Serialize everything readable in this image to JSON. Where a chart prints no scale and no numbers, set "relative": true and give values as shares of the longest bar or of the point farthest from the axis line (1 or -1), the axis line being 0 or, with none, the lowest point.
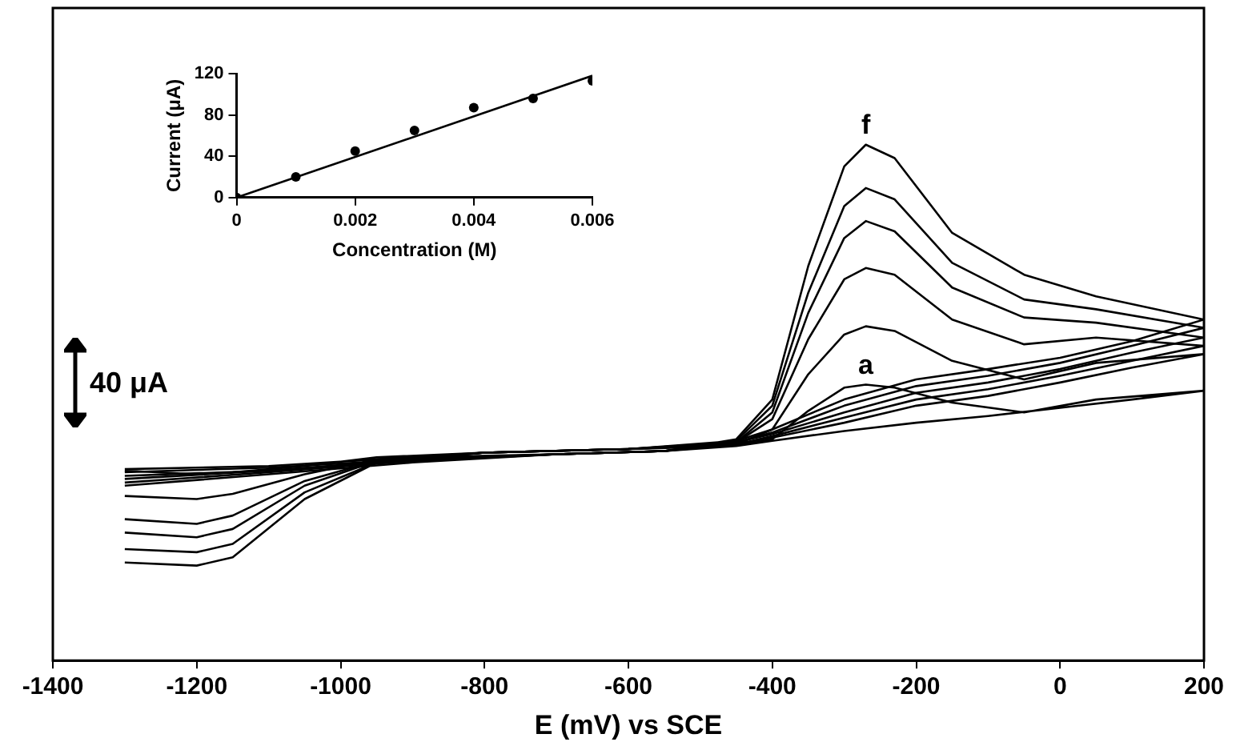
{
  "chart_data": [
    {
      "type": "line",
      "relative": true,
      "xlabel": "E (mV) vs SCE",
      "xlim": [
        -1400,
        200
      ],
      "xticks": [
        -1400,
        -1200,
        -1000,
        -800,
        -600,
        -400,
        -200,
        0,
        200
      ],
      "grid": false,
      "annotations": [
        "40 μA"
      ],
      "x": [
        -1300,
        -1100,
        -900,
        -700,
        -550,
        -450,
        -400,
        -350,
        -300,
        -270,
        -230,
        -150,
        -50,
        50,
        200,
        200,
        100,
        0,
        -100,
        -200,
        -300,
        -400,
        -450,
        -600,
        -800,
        -950,
        -1050,
        -1150,
        -1200,
        -1300
      ],
      "series": [
        {
          "name": "a",
          "color": "#000000",
          "values": [
            0.371,
            0.377,
            0.394,
            0.4,
            0.406,
            0.416,
            0.429,
            0.484,
            0.529,
            0.535,
            0.529,
            0.5,
            0.481,
            0.506,
            0.523,
            0.523,
            0.506,
            0.49,
            0.474,
            0.461,
            0.445,
            0.426,
            0.416,
            0.41,
            0.403,
            0.394,
            0.377,
            0.365,
            0.361,
            0.368
          ]
        },
        {
          "color": "#000000",
          "values": [
            0.365,
            0.374,
            0.39,
            0.4,
            0.406,
            0.419,
            0.448,
            0.555,
            0.632,
            0.648,
            0.639,
            0.581,
            0.545,
            0.577,
            0.594,
            0.594,
            0.568,
            0.539,
            0.513,
            0.494,
            0.461,
            0.432,
            0.419,
            0.41,
            0.403,
            0.39,
            0.361,
            0.323,
            0.313,
            0.319
          ]
        },
        {
          "color": "#000000",
          "values": [
            0.358,
            0.368,
            0.39,
            0.4,
            0.406,
            0.423,
            0.468,
            0.623,
            0.739,
            0.761,
            0.748,
            0.661,
            0.613,
            0.626,
            0.61,
            0.61,
            0.581,
            0.552,
            0.526,
            0.506,
            0.471,
            0.435,
            0.419,
            0.41,
            0.403,
            0.387,
            0.348,
            0.281,
            0.265,
            0.274
          ]
        },
        {
          "color": "#000000",
          "values": [
            0.352,
            0.368,
            0.387,
            0.4,
            0.406,
            0.423,
            0.481,
            0.674,
            0.819,
            0.852,
            0.832,
            0.723,
            0.665,
            0.655,
            0.626,
            0.626,
            0.597,
            0.565,
            0.539,
            0.519,
            0.481,
            0.439,
            0.423,
            0.41,
            0.403,
            0.387,
            0.339,
            0.255,
            0.239,
            0.248
          ]
        },
        {
          "color": "#000000",
          "values": [
            0.345,
            0.365,
            0.387,
            0.4,
            0.406,
            0.426,
            0.494,
            0.713,
            0.881,
            0.916,
            0.894,
            0.771,
            0.7,
            0.681,
            0.645,
            0.645,
            0.61,
            0.577,
            0.552,
            0.532,
            0.494,
            0.442,
            0.423,
            0.41,
            0.403,
            0.384,
            0.326,
            0.226,
            0.21,
            0.216
          ]
        },
        {
          "name": "f",
          "color": "#000000",
          "values": [
            0.339,
            0.361,
            0.384,
            0.4,
            0.406,
            0.429,
            0.506,
            0.765,
            0.958,
            1,
            0.974,
            0.829,
            0.748,
            0.706,
            0.661,
            0.661,
            0.619,
            0.587,
            0.565,
            0.545,
            0.506,
            0.448,
            0.426,
            0.41,
            0.403,
            0.384,
            0.313,
            0.2,
            0.184,
            0.19
          ]
        }
      ]
    },
    {
      "type": "scatter",
      "xlabel": "Concentration (M)",
      "ylabel": "Current (μA)",
      "xlim": [
        0,
        0.006
      ],
      "xticks": [
        0,
        0.002,
        0.004,
        0.006
      ],
      "ylim": [
        0,
        120
      ],
      "yticks": [
        0,
        40,
        80,
        120
      ],
      "grid": false,
      "marker": "circle",
      "x": [
        0,
        0.001,
        0.002,
        0.003,
        0.004,
        0.005,
        0.006
      ],
      "series": [
        {
          "color": "#000000",
          "values": [
            0,
            20,
            45,
            65,
            87,
            96,
            113
          ]
        },
        {
          "type": "line",
          "marker": "none",
          "color": "#000000",
          "x": [
            0,
            0.006
          ],
          "values": [
            0,
            118
          ]
        }
      ]
    }
  ]
}
